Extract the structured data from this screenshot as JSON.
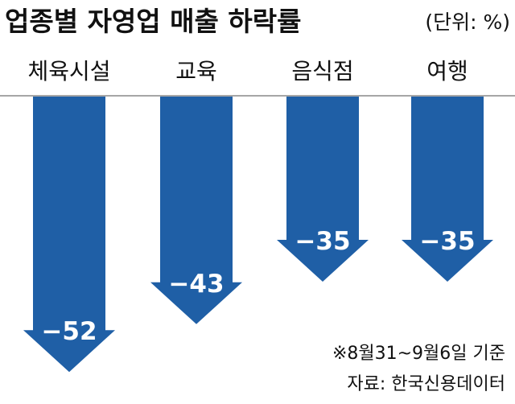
{
  "chart_data": {
    "type": "bar",
    "title": "업종별 자영업 매출 하락률",
    "unit": "(단위: %)",
    "categories": [
      "체육시설",
      "교육",
      "음식점",
      "여행"
    ],
    "values": [
      -52,
      -43,
      -35,
      -35
    ],
    "value_labels": [
      "−52",
      "−43",
      "−35",
      "−35"
    ],
    "bar_color": "#1f5fa6",
    "grid": false,
    "legend": "none"
  },
  "notes": {
    "period": "※8월31~9월6일 기준",
    "source": "자료: 한국신용데이터"
  }
}
